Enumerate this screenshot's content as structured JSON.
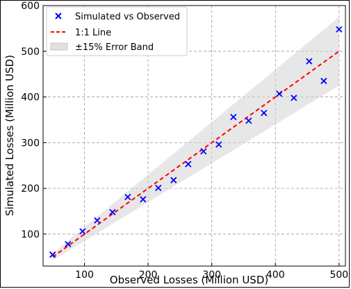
{
  "chart_data": {
    "type": "scatter",
    "xlabel": "Observed Losses (Million USD)",
    "ylabel": "Simulated Losses (Million USD)",
    "xlim": [
      35,
      510
    ],
    "ylim": [
      30,
      600
    ],
    "xticks": [
      100,
      200,
      300,
      400,
      500
    ],
    "yticks": [
      100,
      200,
      300,
      400,
      500,
      600
    ],
    "grid": true,
    "grid_style": "dashed",
    "legend_position": "top-left",
    "series": [
      {
        "name": "Simulated vs Observed",
        "marker": "x",
        "color": "#0000ff",
        "points": [
          [
            50,
            55
          ],
          [
            74,
            78
          ],
          [
            97,
            106
          ],
          [
            120,
            130
          ],
          [
            144,
            148
          ],
          [
            168,
            181
          ],
          [
            192,
            176
          ],
          [
            216,
            201
          ],
          [
            240,
            218
          ],
          [
            263,
            253
          ],
          [
            287,
            281
          ],
          [
            311,
            296
          ],
          [
            334,
            356
          ],
          [
            358,
            348
          ],
          [
            382,
            365
          ],
          [
            406,
            407
          ],
          [
            429,
            398
          ],
          [
            453,
            478
          ],
          [
            476,
            435
          ],
          [
            500,
            548
          ]
        ]
      },
      {
        "name": "1:1 Line",
        "style": "dashed",
        "color": "#ff0000",
        "x": [
          50,
          500
        ],
        "y": [
          50,
          500
        ]
      },
      {
        "name": "±15% Error Band",
        "type": "band",
        "color": "#d3d3d3",
        "x": [
          50,
          500
        ],
        "lower": [
          42.5,
          425
        ],
        "upper": [
          57.5,
          575
        ]
      }
    ]
  },
  "legend": {
    "scatter_label": "Simulated vs Observed",
    "line_label": "1:1 Line",
    "band_label": "±15% Error Band"
  }
}
